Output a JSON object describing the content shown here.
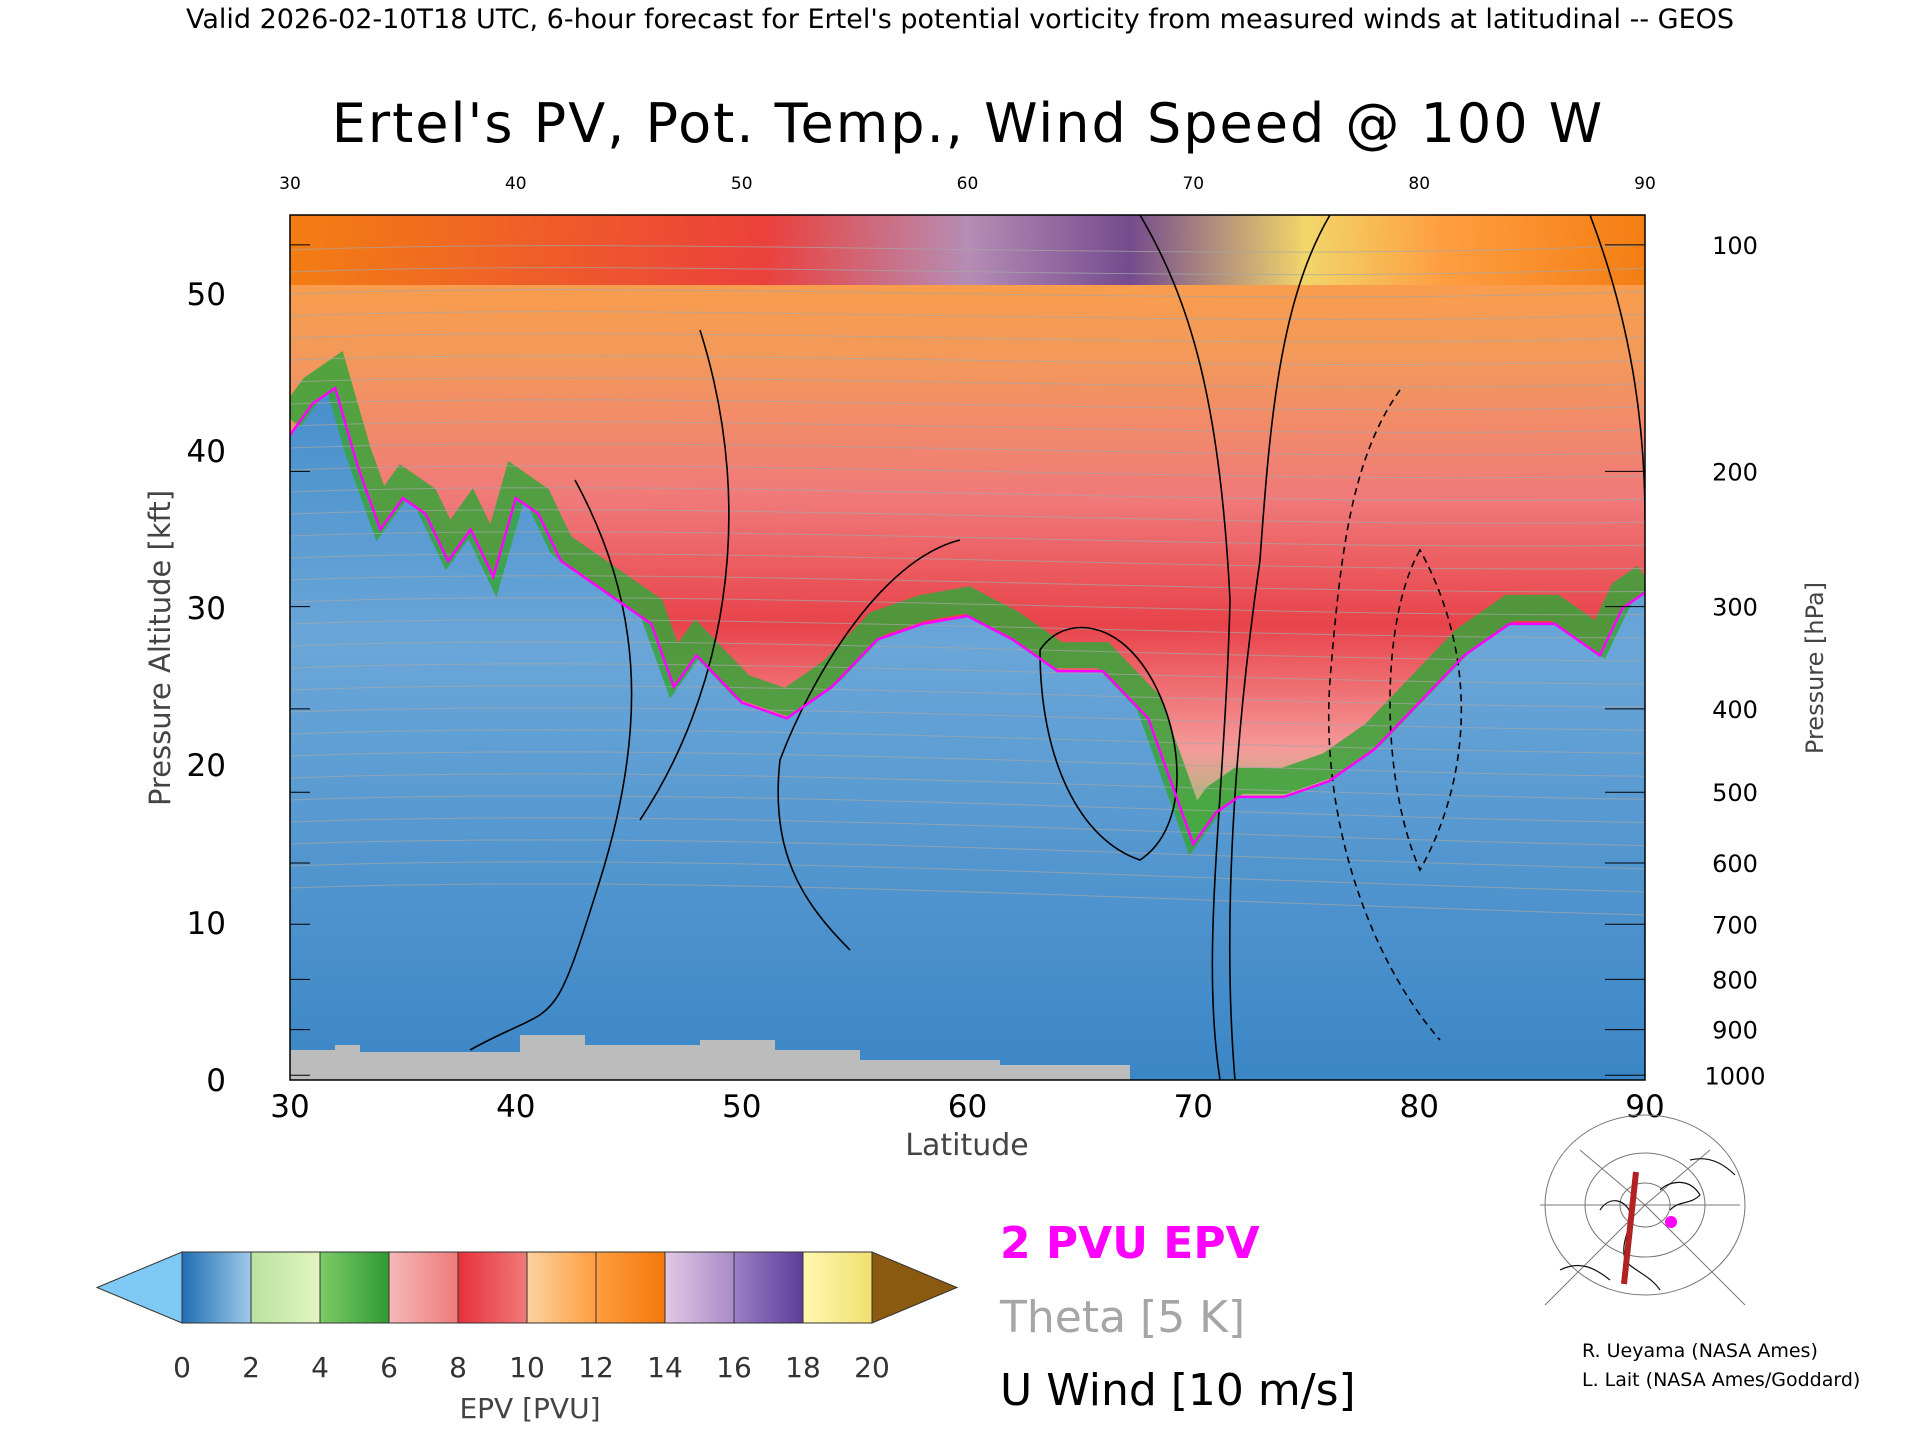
{
  "header_text": "Valid 2026-02-10T18 UTC, 6-hour forecast for Ertel's potential vorticity from measured winds at latitudinal -- GEOS",
  "chart_data": {
    "type": "heatmap",
    "title": "Ertel's PV, Pot. Temp., Wind Speed @ 100 W",
    "xlabel": "Latitude",
    "ylabel": "Pressure Altitude [kft]",
    "ylabel_right": "Pressure [hPa]",
    "xlim": [
      30,
      90
    ],
    "ylim": [
      0,
      55
    ],
    "x_ticks": [
      "30",
      "40",
      "50",
      "60",
      "70",
      "80",
      "90"
    ],
    "y_ticks": [
      "0",
      "10",
      "20",
      "30",
      "40",
      "50"
    ],
    "pressure_ticks": [
      {
        "label": "100",
        "kft": 53.1
      },
      {
        "label": "200",
        "kft": 38.7
      },
      {
        "label": "300",
        "kft": 30.1
      },
      {
        "label": "400",
        "kft": 23.6
      },
      {
        "label": "500",
        "kft": 18.3
      },
      {
        "label": "600",
        "kft": 13.8
      },
      {
        "label": "700",
        "kft": 9.9
      },
      {
        "label": "800",
        "kft": 6.4
      },
      {
        "label": "900",
        "kft": 3.2
      },
      {
        "label": "1000",
        "kft": 0.3
      }
    ],
    "tropopause_2pvu_kft": {
      "lat": [
        30,
        31,
        32,
        33,
        34,
        35,
        36,
        37,
        38,
        39,
        40,
        41,
        42,
        43,
        44,
        45,
        46,
        47,
        48,
        50,
        52,
        54,
        56,
        58,
        60,
        62,
        64,
        66,
        68,
        69,
        70,
        71,
        72,
        74,
        76,
        78,
        80,
        82,
        84,
        86,
        88,
        89,
        90
      ],
      "kft": [
        41,
        43,
        44,
        39,
        35,
        37,
        36,
        33,
        35,
        32,
        37,
        36,
        33,
        32,
        31,
        30,
        29,
        25,
        27,
        24,
        23,
        25,
        28,
        29,
        29.5,
        28,
        26,
        26,
        23,
        19,
        15,
        17,
        18,
        18,
        19,
        21,
        24,
        27,
        29,
        29,
        27,
        30,
        31
      ]
    },
    "epv_colorbar": {
      "label": "EPV [PVU]",
      "ticks": [
        "0",
        "2",
        "4",
        "6",
        "8",
        "10",
        "12",
        "14",
        "16",
        "18",
        "20"
      ],
      "under_color": "#7fc9f5",
      "over_color": "#8a5a10",
      "bins": [
        [
          "#1f6fb4",
          "#9fc9e9"
        ],
        [
          "#b8e3a0",
          "#e3f5c0"
        ],
        [
          "#7ccc66",
          "#2f9a35"
        ],
        [
          "#f5b8b8",
          "#f07a7a"
        ],
        [
          "#e8303a",
          "#f07a7a"
        ],
        [
          "#fbd3a0",
          "#ff9e40"
        ],
        [
          "#ff9e40",
          "#f2780a"
        ],
        [
          "#e2c8e4",
          "#a98ac8"
        ],
        [
          "#9a80c4",
          "#5c3d9a"
        ],
        [
          "#fff8b0",
          "#f0e070"
        ]
      ]
    },
    "legend": [
      {
        "label": "2 PVU EPV",
        "color": "#ff00ff"
      },
      {
        "label": "Theta [5 K]",
        "color": "#a6a6a6"
      },
      {
        "label": "U Wind [10 m/s]",
        "color": "#000000"
      }
    ]
  },
  "credits": [
    "R. Ueyama (NASA Ames)",
    "L. Lait (NASA Ames/Goddard)"
  ]
}
